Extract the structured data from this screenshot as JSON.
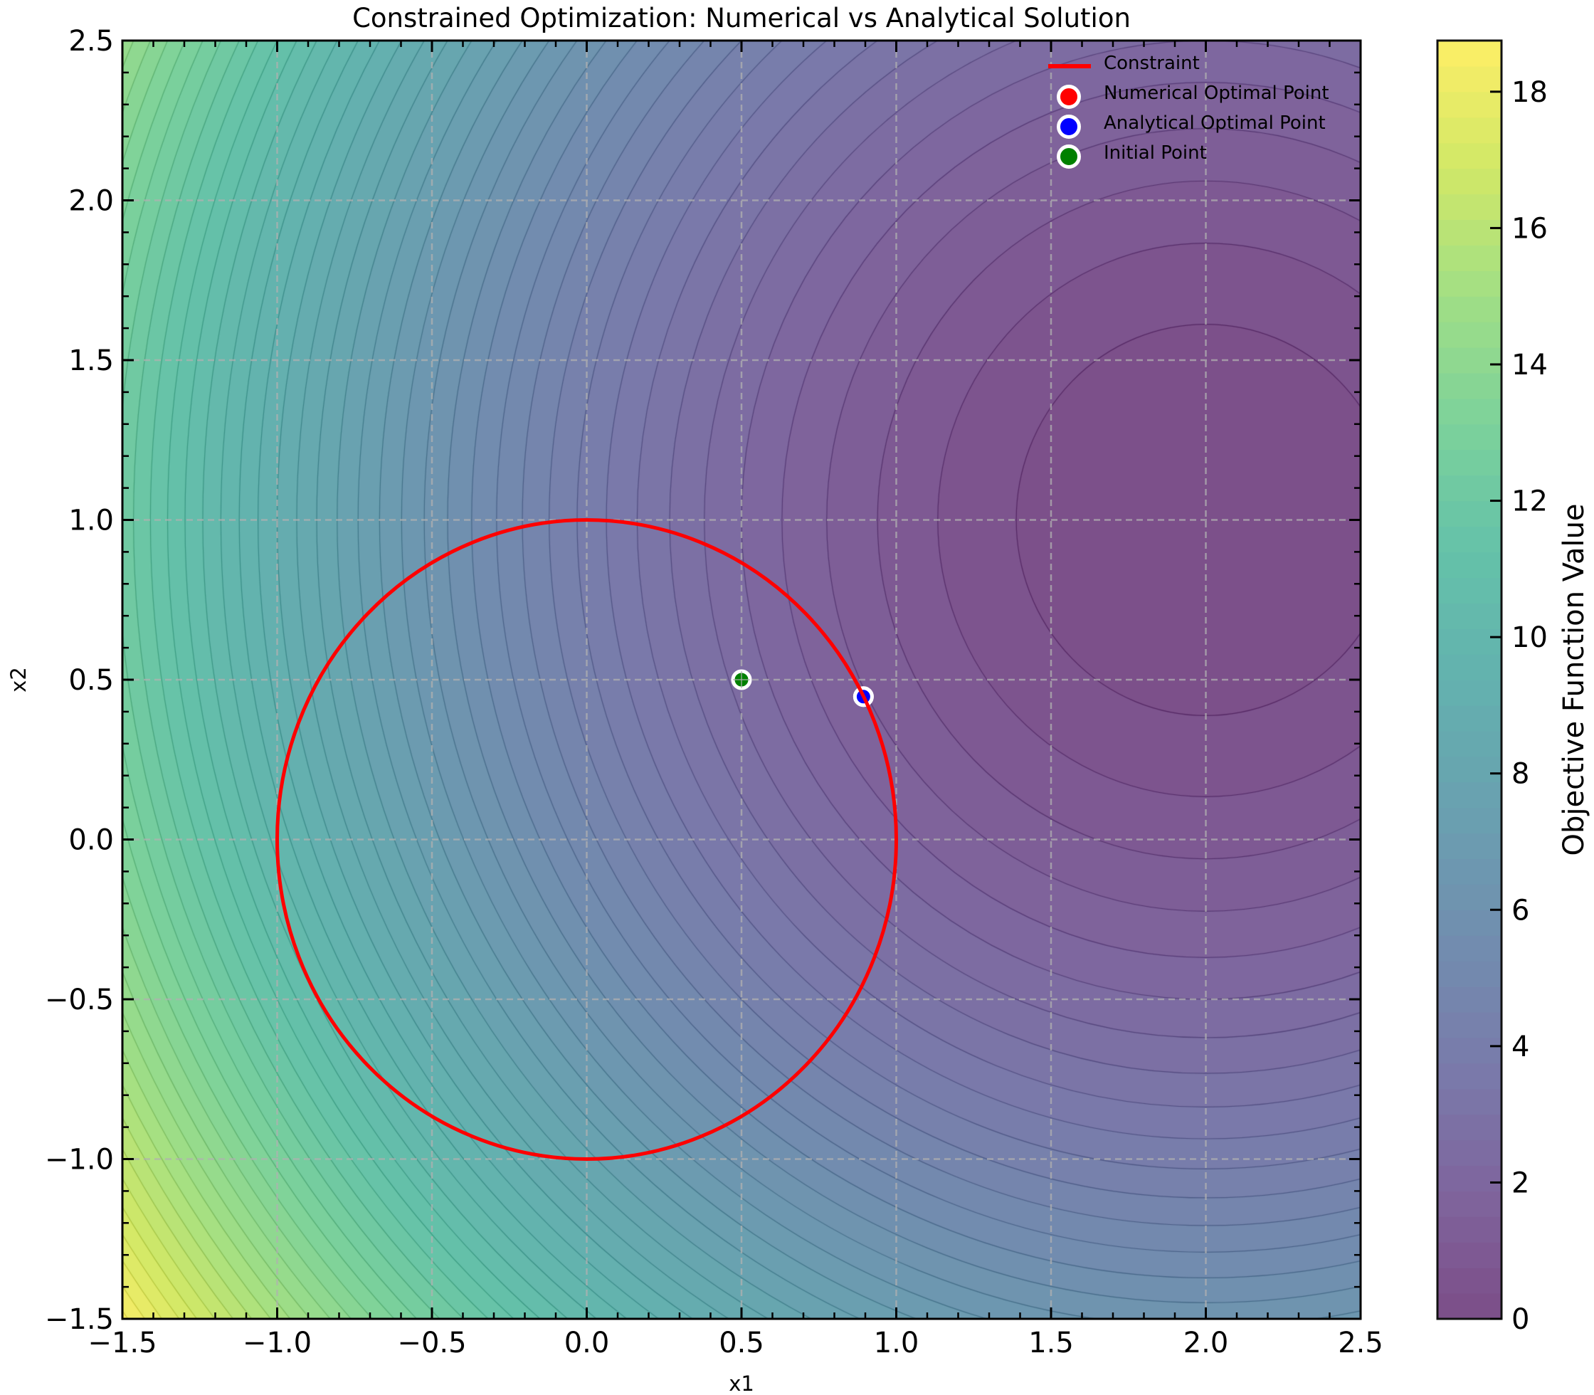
{
  "figure": {
    "title": "Constrained Optimization: Numerical vs Analytical Solution"
  },
  "axes": {
    "xlabel": "x1",
    "ylabel": "x2",
    "xlim": [
      -1.5,
      2.5
    ],
    "ylim": [
      -1.5,
      2.5
    ],
    "xticks": [
      "−1.5",
      "−1.0",
      "−0.5",
      "0.0",
      "0.5",
      "1.0",
      "1.5",
      "2.0",
      "2.5"
    ],
    "yticks": [
      "−1.5",
      "−1.0",
      "−0.5",
      "0.0",
      "0.5",
      "1.0",
      "1.5",
      "2.0",
      "2.5"
    ]
  },
  "colorbar": {
    "label": "Objective Function Value",
    "ticks": [
      "0",
      "2",
      "4",
      "6",
      "8",
      "10",
      "12",
      "14",
      "16",
      "18"
    ],
    "range": [
      0,
      18.75
    ],
    "colormap": "viridis",
    "alpha": 0.7
  },
  "legend": {
    "items": [
      {
        "label": "Constraint",
        "type": "line",
        "color": "#ff0000"
      },
      {
        "label": "Numerical Optimal Point",
        "type": "marker",
        "color": "#ff0000"
      },
      {
        "label": "Analytical Optimal Point",
        "type": "marker",
        "color": "#0000ff"
      },
      {
        "label": "Initial Point",
        "type": "marker",
        "color": "#008000"
      }
    ]
  },
  "chart_data": {
    "type": "contour",
    "title": "Constrained Optimization: Numerical vs Analytical Solution",
    "xlabel": "x1",
    "ylabel": "x2",
    "xlim": [
      -1.5,
      2.5
    ],
    "ylim": [
      -1.5,
      2.5
    ],
    "grid": true,
    "legend_position": "upper right",
    "objective": "f(x1,x2) = (x1 - 2)^2 + (x2 - 1)^2",
    "objective_center": [
      2.0,
      1.0
    ],
    "contour_levels": 50,
    "colorbar": {
      "label": "Objective Function Value",
      "min": 0,
      "max": 18.75,
      "ticks": [
        0,
        2,
        4,
        6,
        8,
        10,
        12,
        14,
        16,
        18
      ]
    },
    "constraint": {
      "label": "Constraint",
      "shape": "circle",
      "equation": "x1^2 + x2^2 = 1",
      "center": [
        0,
        0
      ],
      "radius": 1.0,
      "color": "#ff0000"
    },
    "points": [
      {
        "label": "Numerical Optimal Point",
        "x": 0.894,
        "y": 0.447,
        "color": "#ff0000"
      },
      {
        "label": "Analytical Optimal Point",
        "x": 0.894,
        "y": 0.447,
        "color": "#0000ff"
      },
      {
        "label": "Initial Point",
        "x": 0.5,
        "y": 0.5,
        "color": "#008000"
      }
    ]
  }
}
